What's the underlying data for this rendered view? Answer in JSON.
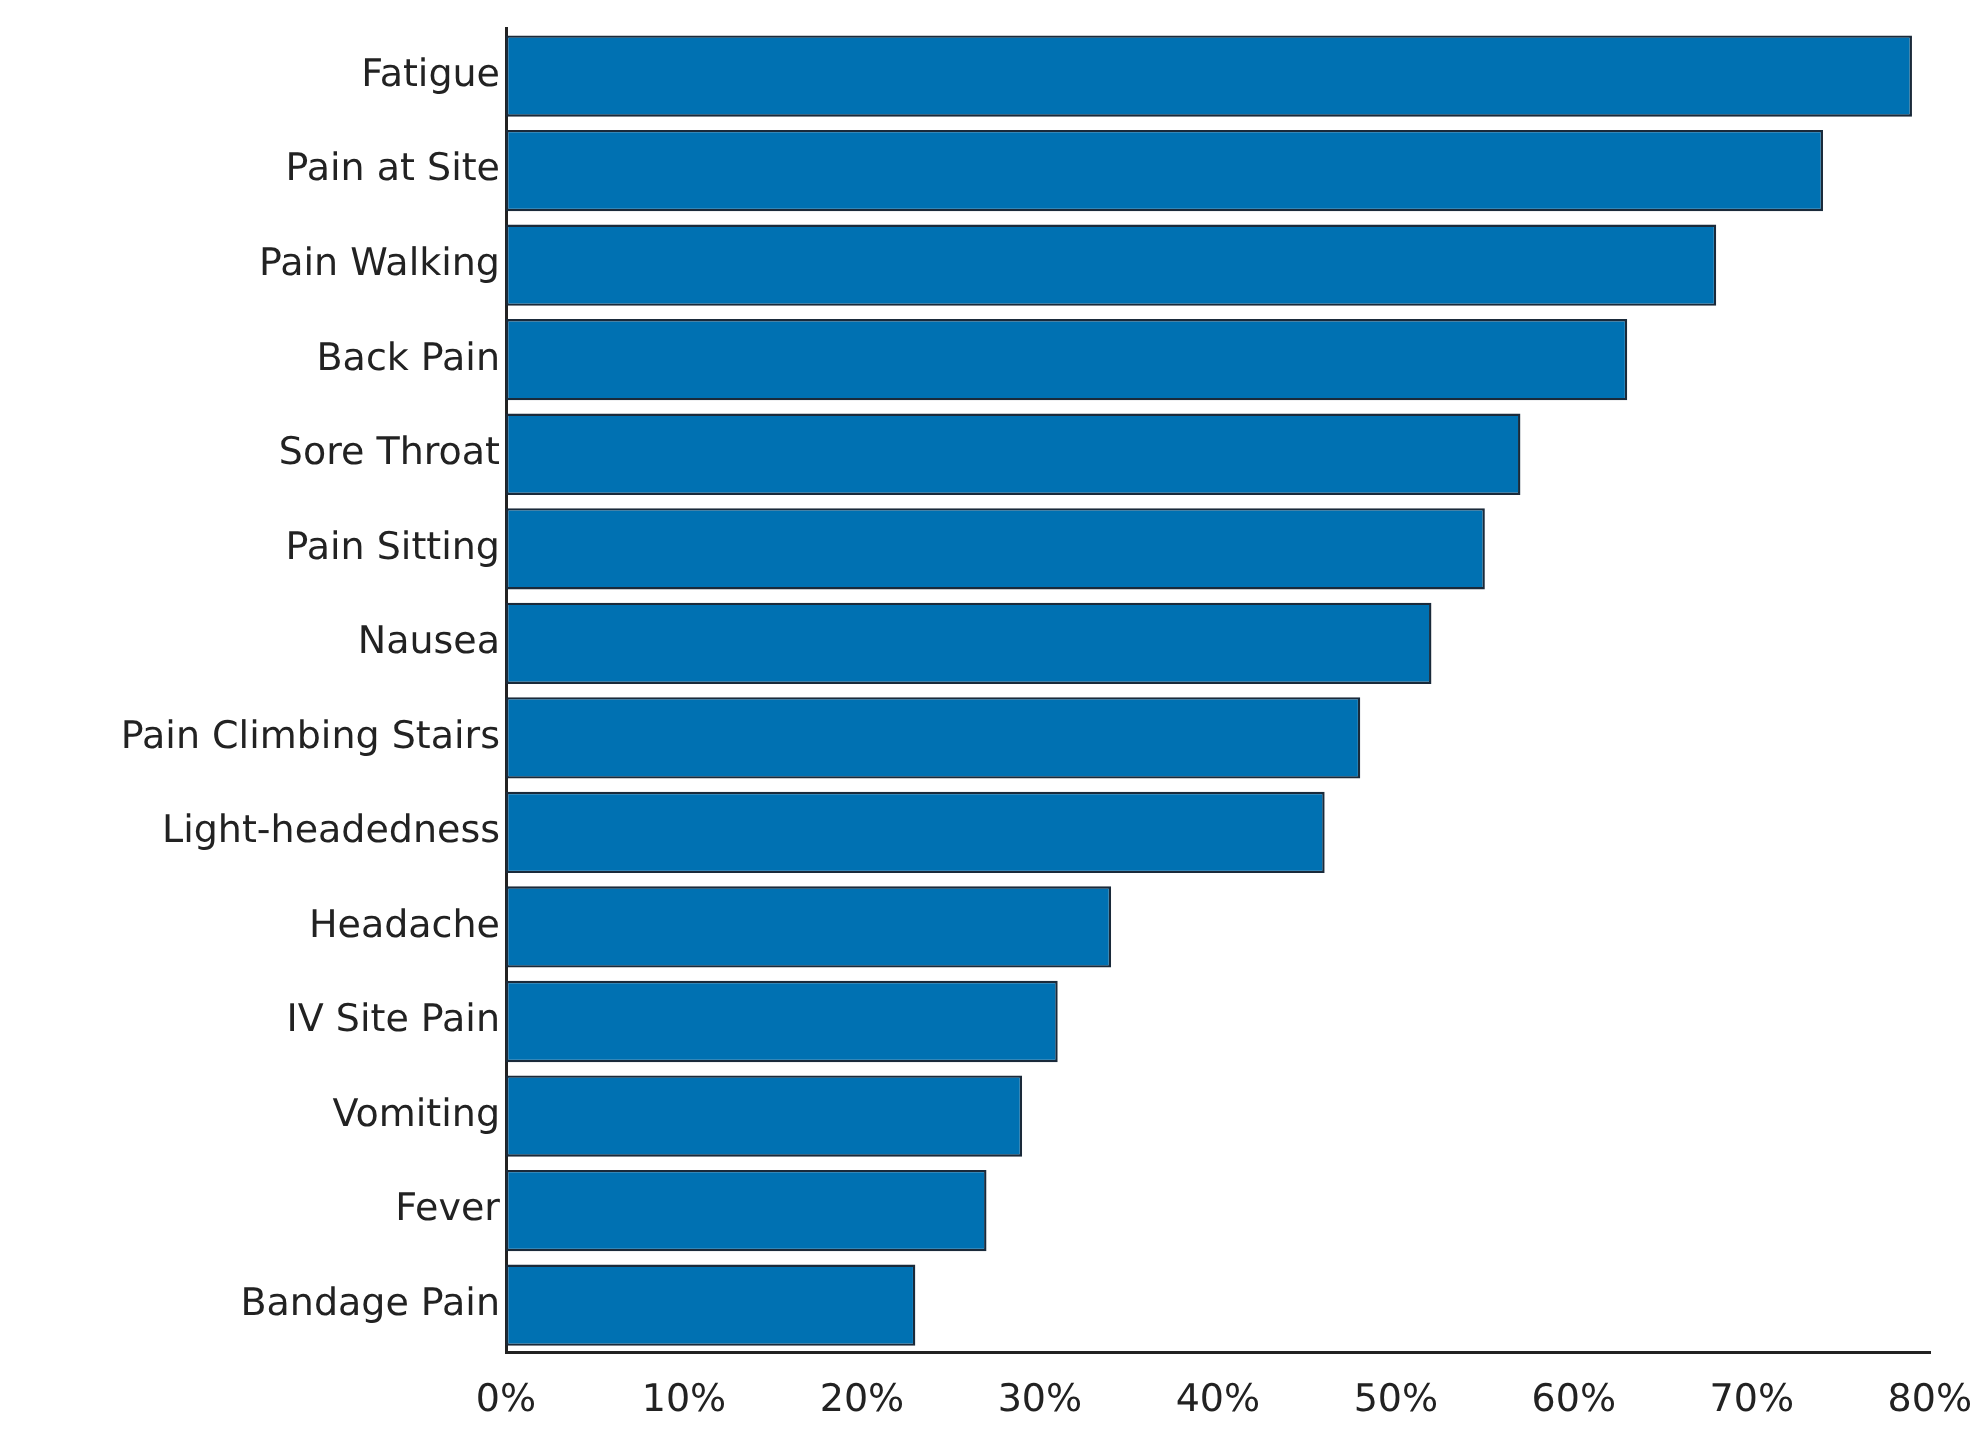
{
  "chart_data": {
    "type": "bar",
    "orientation": "horizontal",
    "categories": [
      "Fatigue",
      "Pain at Site",
      "Pain Walking",
      "Back Pain",
      "Sore Throat",
      "Pain Sitting",
      "Nausea",
      "Pain Climbing Stairs",
      "Light-headedness",
      "Headache",
      "IV Site Pain",
      "Vomiting",
      "Fever",
      "Bandage Pain"
    ],
    "values": [
      79,
      74,
      68,
      63,
      57,
      55,
      52,
      48,
      46,
      34,
      31,
      29,
      27,
      23
    ],
    "color": "#0071b2",
    "xlim": [
      0,
      80
    ],
    "xticks": [
      {
        "value": 0,
        "label": "0%"
      },
      {
        "value": 10,
        "label": "10%"
      },
      {
        "value": 20,
        "label": "20%"
      },
      {
        "value": 30,
        "label": "30%"
      },
      {
        "value": 40,
        "label": "40%"
      },
      {
        "value": 50,
        "label": "50%"
      },
      {
        "value": 60,
        "label": "60%"
      },
      {
        "value": 70,
        "label": "70%"
      },
      {
        "value": 80,
        "label": "80%"
      }
    ],
    "grid": false,
    "legend": false
  }
}
